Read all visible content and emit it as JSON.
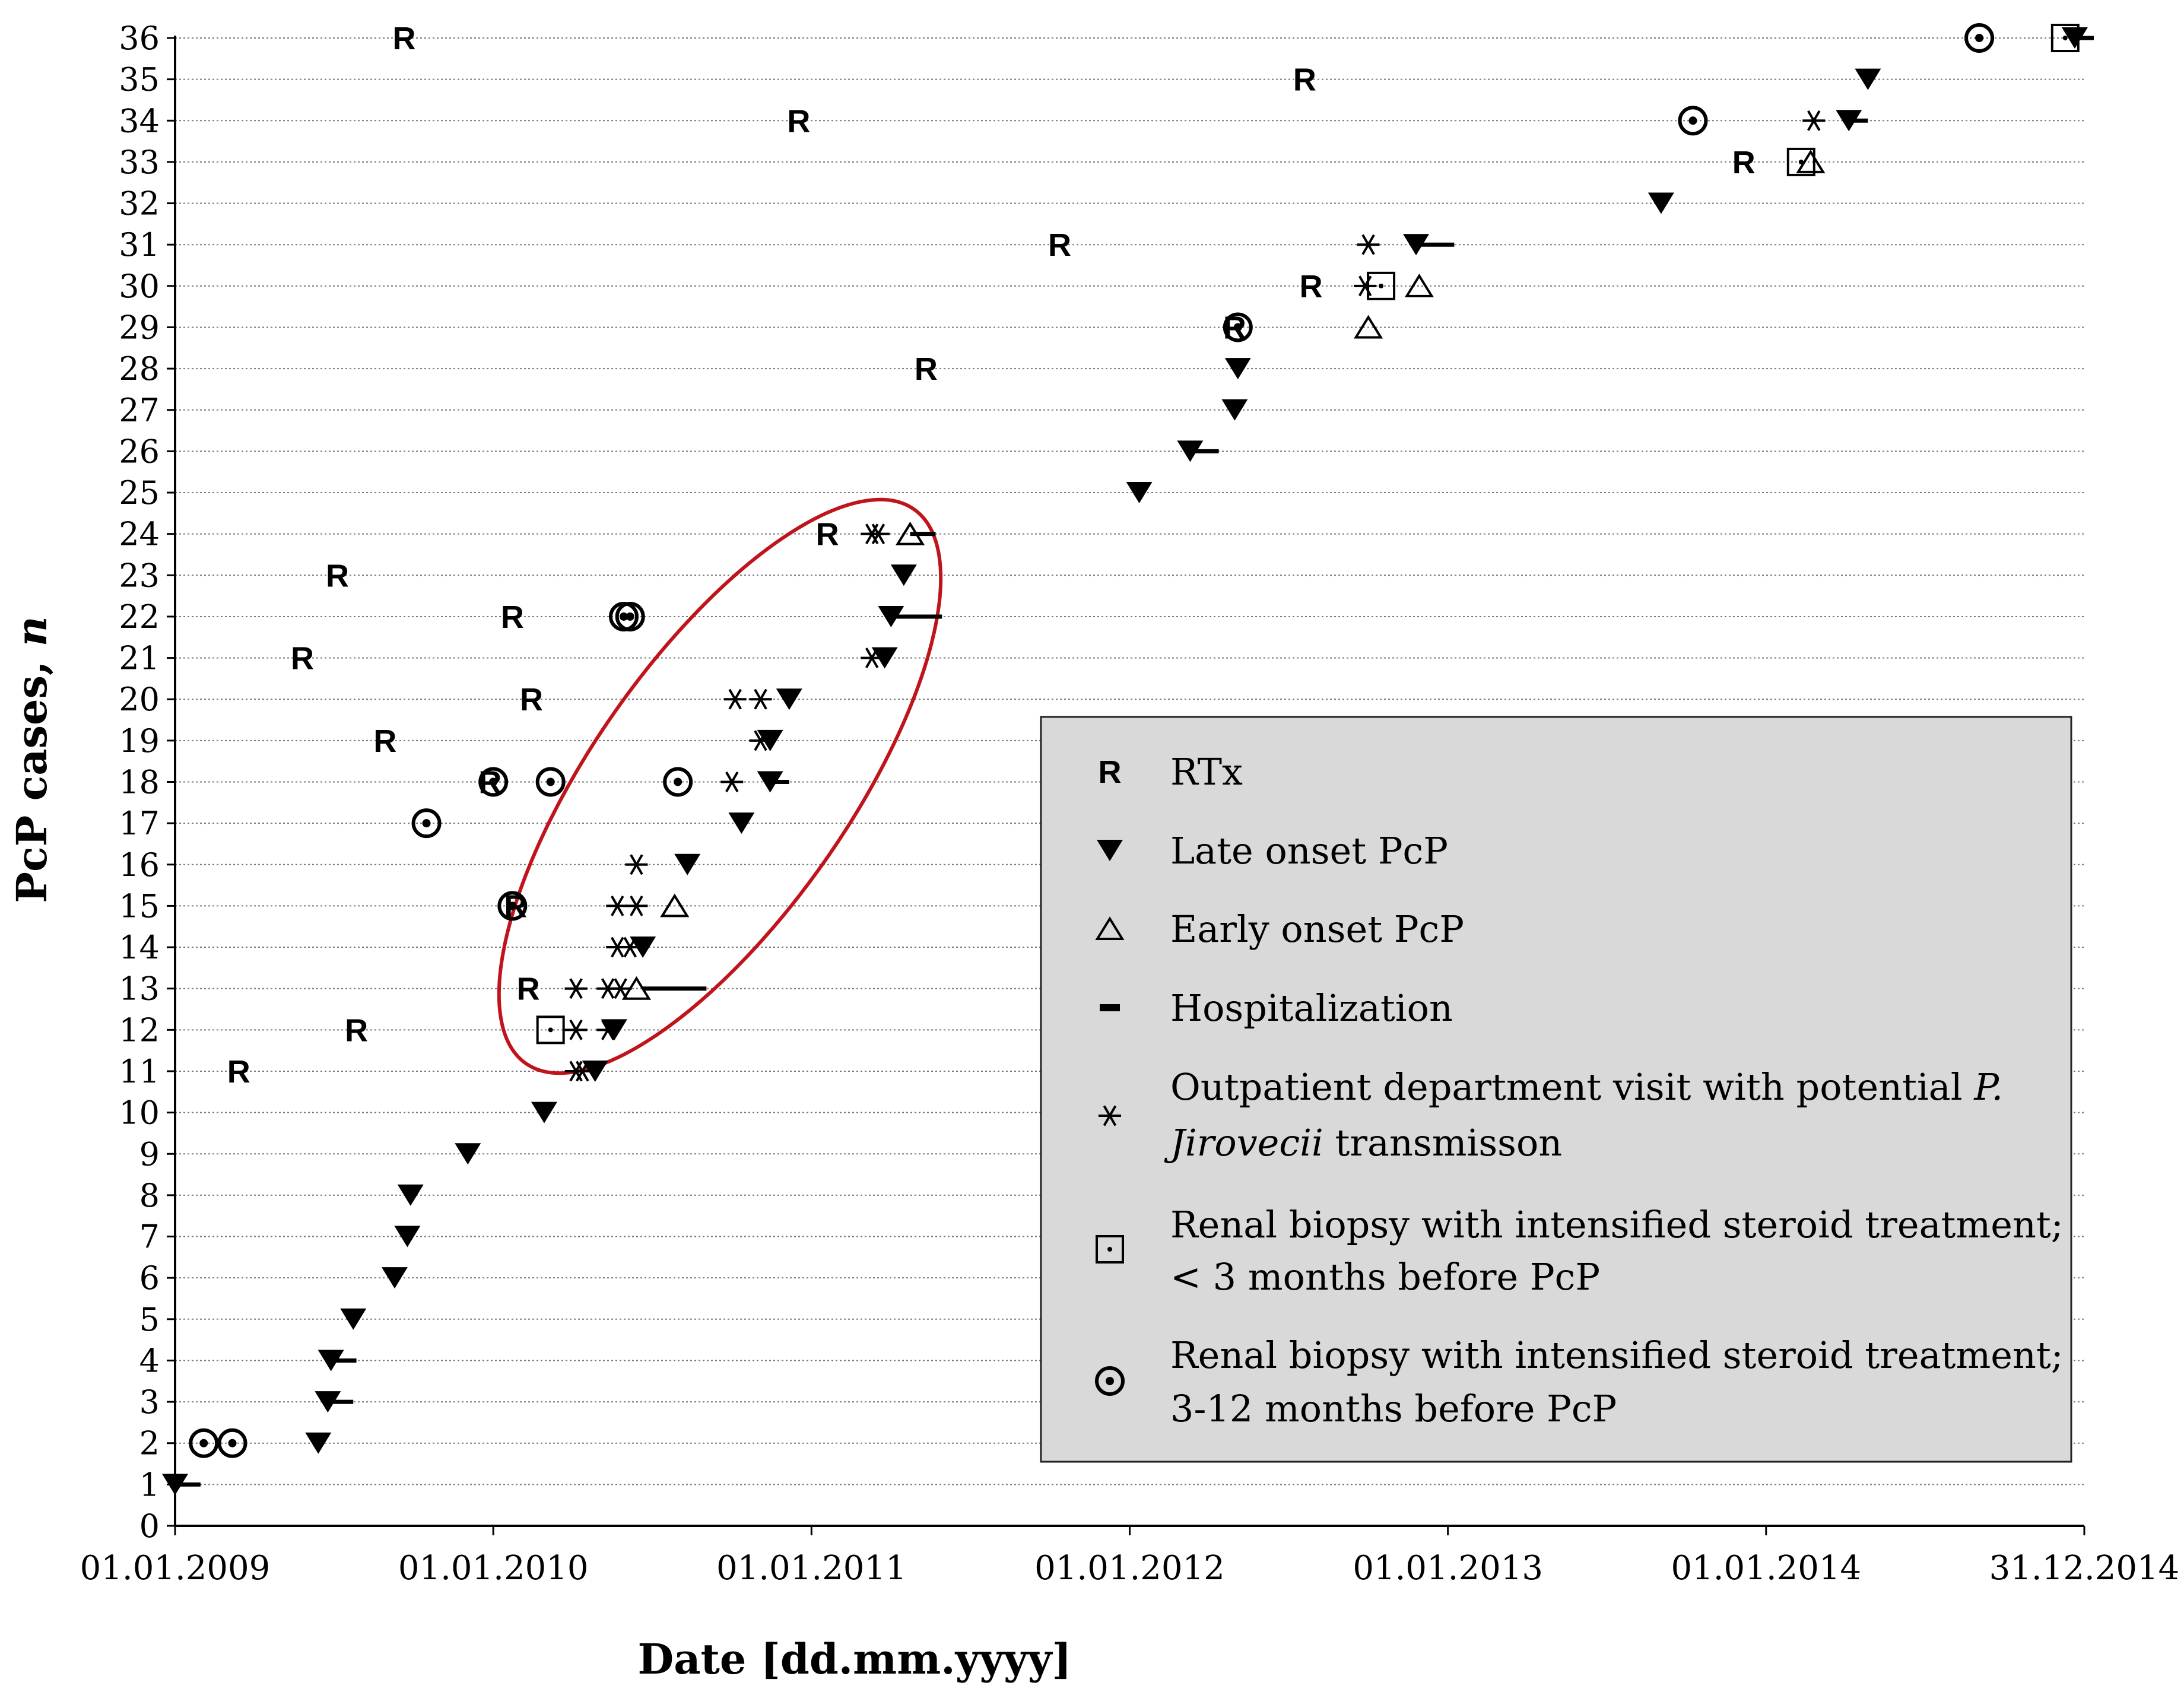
{
  "chart_data": {
    "type": "scatter",
    "title": "",
    "xlabel": "Date [dd.mm.yyyy]",
    "ylabel_main": "PcP cases, ",
    "ylabel_italic": "n",
    "xlim_years": [
      2009.0,
      2015.0
    ],
    "ylim": [
      0,
      36
    ],
    "x_tick_labels": [
      "01.01.2009",
      "01.01.2010",
      "01.01.2011",
      "01.01.2012",
      "01.01.2013",
      "01.01.2014",
      "31.12.2014"
    ],
    "x_tick_years": [
      2009.0,
      2010.0,
      2011.0,
      2012.0,
      2013.0,
      2014.0,
      2015.0
    ],
    "y_ticks": [
      0,
      1,
      2,
      3,
      4,
      5,
      6,
      7,
      8,
      9,
      10,
      11,
      12,
      13,
      14,
      15,
      16,
      17,
      18,
      19,
      20,
      21,
      22,
      23,
      24,
      25,
      26,
      27,
      28,
      29,
      30,
      31,
      32,
      33,
      34,
      35,
      36
    ],
    "grid": "horizontal dotted",
    "annotation": "red ellipse around cluster of cases 10-24 (2010-2011)",
    "legend": {
      "placement": "center-right",
      "items": [
        {
          "marker": "R",
          "label": "RTx"
        },
        {
          "marker": "late",
          "label": "Late onset PcP"
        },
        {
          "marker": "early",
          "label": "Early onset PcP"
        },
        {
          "marker": "hosp",
          "label": "Hospitalization"
        },
        {
          "marker": "star",
          "label_parts": [
            "Outpatient department visit with potential ",
            "P.",
            "Jirovecii",
            " transmisson"
          ]
        },
        {
          "marker": "boxdot",
          "label_lines": [
            "Renal biopsy with intensified steroid treatment;",
            "< 3 months before PcP"
          ]
        },
        {
          "marker": "circdot",
          "label_lines": [
            "Renal biopsy with intensified steroid treatment;",
            "3-12 months before PcP"
          ]
        }
      ]
    },
    "series": [
      {
        "name": "RTx",
        "marker": "R",
        "points": [
          [
            2009.72,
            36
          ],
          [
            2012.55,
            35
          ],
          [
            2010.96,
            34
          ],
          [
            2013.93,
            33
          ],
          [
            2011.78,
            31
          ],
          [
            2012.57,
            30
          ],
          [
            2012.33,
            29
          ],
          [
            2011.36,
            28
          ],
          [
            2009.51,
            23
          ],
          [
            2010.06,
            22
          ],
          [
            2011.05,
            24
          ],
          [
            2009.4,
            21
          ],
          [
            2010.12,
            20
          ],
          [
            2009.66,
            19
          ],
          [
            2009.99,
            18
          ],
          [
            2010.07,
            15
          ],
          [
            2010.11,
            13
          ],
          [
            2009.57,
            12
          ],
          [
            2009.2,
            11
          ]
        ]
      },
      {
        "name": "Late onset PcP",
        "marker": "late",
        "points": [
          [
            2009.0,
            1
          ],
          [
            2009.45,
            2
          ],
          [
            2009.48,
            3
          ],
          [
            2009.49,
            4
          ],
          [
            2009.56,
            5
          ],
          [
            2009.69,
            6
          ],
          [
            2009.73,
            7
          ],
          [
            2009.74,
            8
          ],
          [
            2009.92,
            9
          ],
          [
            2010.16,
            10
          ],
          [
            2010.32,
            11
          ],
          [
            2010.38,
            12
          ],
          [
            2010.47,
            14
          ],
          [
            2010.61,
            16
          ],
          [
            2010.78,
            17
          ],
          [
            2010.87,
            18
          ],
          [
            2010.87,
            19
          ],
          [
            2010.93,
            20
          ],
          [
            2011.23,
            21
          ],
          [
            2011.25,
            22
          ],
          [
            2011.29,
            23
          ],
          [
            2012.03,
            25
          ],
          [
            2012.19,
            26
          ],
          [
            2012.33,
            27
          ],
          [
            2012.34,
            28
          ],
          [
            2012.9,
            31
          ],
          [
            2013.67,
            32
          ],
          [
            2014.26,
            34
          ],
          [
            2014.32,
            35
          ],
          [
            2014.97,
            36
          ]
        ]
      },
      {
        "name": "Early onset PcP",
        "marker": "early",
        "points": [
          [
            2010.45,
            13
          ],
          [
            2010.57,
            15
          ],
          [
            2011.31,
            24
          ],
          [
            2012.75,
            29
          ],
          [
            2012.91,
            30
          ],
          [
            2014.14,
            33
          ]
        ]
      },
      {
        "name": "Hospitalization",
        "marker": "hosp",
        "points": [
          [
            2009.0,
            1,
            0.08
          ],
          [
            2009.48,
            3,
            0.08
          ],
          [
            2009.49,
            4,
            0.08
          ],
          [
            2010.47,
            13,
            0.2
          ],
          [
            2010.87,
            18,
            0.06
          ],
          [
            2011.25,
            22,
            0.16
          ],
          [
            2011.31,
            24,
            0.08
          ],
          [
            2012.19,
            26,
            0.09
          ],
          [
            2012.9,
            31,
            0.12
          ],
          [
            2014.26,
            34,
            0.06
          ],
          [
            2014.97,
            36,
            0.06
          ]
        ]
      },
      {
        "name": "Outpatient department visit with potential P. Jirovecii transmisson",
        "marker": "star",
        "points": [
          [
            2010.26,
            11
          ],
          [
            2010.28,
            11
          ],
          [
            2010.26,
            12
          ],
          [
            2010.36,
            12
          ],
          [
            2010.26,
            13
          ],
          [
            2010.36,
            13
          ],
          [
            2010.4,
            13
          ],
          [
            2010.39,
            14
          ],
          [
            2010.43,
            14
          ],
          [
            2010.45,
            15
          ],
          [
            2010.39,
            15
          ],
          [
            2010.45,
            16
          ],
          [
            2010.75,
            18
          ],
          [
            2010.76,
            20
          ],
          [
            2010.84,
            20
          ],
          [
            2010.84,
            19
          ],
          [
            2011.19,
            21
          ],
          [
            2011.19,
            24
          ],
          [
            2011.21,
            24
          ],
          [
            2012.74,
            30
          ],
          [
            2012.75,
            31
          ],
          [
            2014.15,
            34
          ]
        ]
      },
      {
        "name": "Renal biopsy with intensified steroid treatment; < 3 months before PcP",
        "marker": "boxdot",
        "points": [
          [
            2010.18,
            12
          ],
          [
            2012.79,
            30
          ],
          [
            2014.11,
            33
          ],
          [
            2014.94,
            36
          ]
        ]
      },
      {
        "name": "Renal biopsy with intensified steroid treatment; 3-12 months before PcP",
        "marker": "circdot",
        "points": [
          [
            2009.09,
            2
          ],
          [
            2009.18,
            2
          ],
          [
            2009.79,
            17
          ],
          [
            2010.0,
            18
          ],
          [
            2010.18,
            18
          ],
          [
            2010.58,
            18
          ],
          [
            2010.06,
            15
          ],
          [
            2010.41,
            22
          ],
          [
            2010.43,
            22
          ],
          [
            2012.34,
            29
          ],
          [
            2013.77,
            34
          ],
          [
            2014.67,
            36
          ]
        ]
      }
    ]
  }
}
